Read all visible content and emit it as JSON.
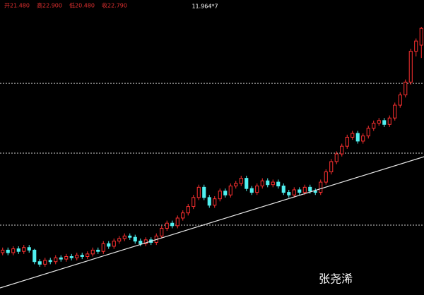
{
  "header": {
    "quote": [
      "开21.480",
      "高22.900",
      "低20.480",
      "收22.790"
    ],
    "center": "11.964*7"
  },
  "watermark": "张尧浠",
  "chart_data": {
    "type": "candlestick",
    "ylim": [
      2,
      25
    ],
    "up_color": "#ff3030",
    "down_color": "#50f0f0",
    "levels": [
      18.5,
      13.06,
      7.45
    ],
    "trendline": [
      2.55,
      12.78
    ],
    "candles": [
      [
        5.3,
        5.7,
        5.1,
        5.5
      ],
      [
        5.5,
        5.7,
        5.1,
        5.3
      ],
      [
        5.3,
        5.8,
        5.1,
        5.6
      ],
      [
        5.6,
        5.8,
        5.2,
        5.4
      ],
      [
        5.4,
        5.9,
        5.2,
        5.7
      ],
      [
        5.7,
        5.9,
        5.3,
        5.5
      ],
      [
        5.5,
        5.6,
        4.4,
        4.6
      ],
      [
        4.6,
        4.8,
        4.2,
        4.4
      ],
      [
        4.4,
        4.9,
        4.2,
        4.7
      ],
      [
        4.7,
        4.9,
        4.4,
        4.6
      ],
      [
        4.6,
        5.1,
        4.4,
        4.9
      ],
      [
        4.9,
        5.1,
        4.6,
        4.8
      ],
      [
        4.8,
        5.2,
        4.6,
        5.0
      ],
      [
        5.0,
        5.2,
        4.7,
        4.9
      ],
      [
        4.9,
        5.3,
        4.7,
        5.1
      ],
      [
        5.1,
        5.3,
        4.8,
        5.0
      ],
      [
        5.0,
        5.4,
        4.8,
        5.2
      ],
      [
        5.2,
        5.7,
        5.0,
        5.5
      ],
      [
        5.5,
        5.7,
        5.2,
        5.4
      ],
      [
        5.4,
        6.2,
        5.2,
        6.0
      ],
      [
        6.0,
        6.2,
        5.6,
        5.8
      ],
      [
        5.8,
        6.4,
        5.6,
        6.2
      ],
      [
        6.2,
        6.6,
        6.0,
        6.4
      ],
      [
        6.4,
        6.8,
        6.2,
        6.6
      ],
      [
        6.6,
        6.8,
        6.3,
        6.5
      ],
      [
        6.5,
        6.7,
        6.0,
        6.2
      ],
      [
        6.2,
        6.4,
        5.8,
        6.0
      ],
      [
        6.0,
        6.5,
        5.8,
        6.3
      ],
      [
        6.3,
        6.5,
        5.9,
        6.1
      ],
      [
        6.1,
        6.8,
        5.9,
        6.6
      ],
      [
        6.6,
        7.4,
        6.4,
        7.2
      ],
      [
        7.2,
        7.8,
        7.0,
        7.6
      ],
      [
        7.6,
        7.8,
        7.2,
        7.4
      ],
      [
        7.4,
        8.2,
        7.2,
        8.0
      ],
      [
        8.0,
        8.6,
        7.8,
        8.4
      ],
      [
        8.4,
        9.1,
        8.2,
        8.9
      ],
      [
        8.9,
        9.8,
        8.7,
        9.6
      ],
      [
        9.6,
        10.6,
        9.4,
        10.4
      ],
      [
        10.4,
        10.6,
        9.4,
        9.6
      ],
      [
        9.6,
        9.8,
        8.8,
        9.0
      ],
      [
        9.0,
        9.7,
        8.8,
        9.5
      ],
      [
        9.5,
        10.3,
        9.3,
        10.1
      ],
      [
        10.1,
        10.3,
        9.6,
        9.8
      ],
      [
        9.8,
        10.7,
        9.6,
        10.5
      ],
      [
        10.5,
        10.9,
        10.3,
        10.7
      ],
      [
        10.7,
        11.3,
        10.5,
        11.1
      ],
      [
        11.1,
        11.3,
        10.1,
        10.3
      ],
      [
        10.3,
        10.5,
        9.8,
        10.0
      ],
      [
        10.0,
        10.7,
        9.8,
        10.5
      ],
      [
        10.5,
        11.1,
        10.3,
        10.9
      ],
      [
        10.9,
        11.1,
        10.4,
        10.6
      ],
      [
        10.6,
        11.0,
        10.4,
        10.8
      ],
      [
        10.8,
        11.0,
        10.3,
        10.5
      ],
      [
        10.5,
        10.7,
        9.8,
        10.0
      ],
      [
        10.0,
        10.2,
        9.6,
        9.8
      ],
      [
        9.8,
        10.4,
        9.6,
        10.2
      ],
      [
        10.2,
        10.4,
        9.8,
        10.0
      ],
      [
        10.0,
        10.6,
        9.8,
        10.4
      ],
      [
        10.4,
        10.6,
        9.9,
        10.1
      ],
      [
        10.1,
        10.3,
        9.8,
        10.0
      ],
      [
        10.0,
        11.0,
        9.8,
        10.8
      ],
      [
        10.8,
        11.8,
        10.6,
        11.6
      ],
      [
        11.6,
        12.6,
        11.4,
        12.4
      ],
      [
        12.4,
        13.2,
        12.2,
        13.0
      ],
      [
        13.0,
        13.8,
        12.8,
        13.6
      ],
      [
        13.6,
        14.5,
        13.4,
        14.3
      ],
      [
        14.3,
        14.8,
        14.1,
        14.6
      ],
      [
        14.6,
        14.8,
        13.8,
        14.0
      ],
      [
        14.0,
        14.6,
        13.8,
        14.4
      ],
      [
        14.4,
        15.2,
        14.2,
        15.0
      ],
      [
        15.0,
        15.6,
        14.8,
        15.4
      ],
      [
        15.4,
        15.8,
        15.2,
        15.6
      ],
      [
        15.6,
        15.8,
        15.1,
        15.3
      ],
      [
        15.3,
        16.0,
        15.1,
        15.8
      ],
      [
        15.8,
        17.0,
        15.6,
        16.8
      ],
      [
        16.8,
        17.8,
        16.6,
        17.6
      ],
      [
        17.6,
        18.8,
        17.4,
        18.6
      ],
      [
        18.6,
        21.2,
        18.4,
        21.0
      ],
      [
        21.0,
        22.0,
        20.6,
        21.8
      ],
      [
        21.48,
        22.9,
        20.48,
        22.79
      ]
    ]
  }
}
